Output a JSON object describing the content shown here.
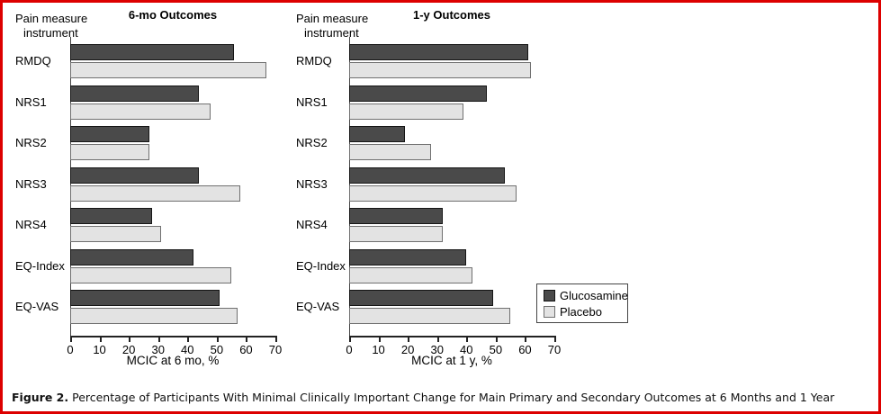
{
  "figure": {
    "border_color": "#dd0000",
    "caption_prefix": "Figure 2.",
    "caption_text": " Percentage of Participants With Minimal Clinically Important Change for Main Primary and Secondary Outcomes at 6 Months and 1 Year"
  },
  "y_axis_header": {
    "line1": "Pain measure",
    "line2": "instrument"
  },
  "legend": {
    "entries": [
      {
        "label": "Glucosamine",
        "color": "#4a4a4a",
        "border": "#151515"
      },
      {
        "label": "Placebo",
        "color": "#e3e3e3",
        "border": "#707070"
      }
    ]
  },
  "colors": {
    "glucosamine": "#4a4a4a",
    "placebo": "#e3e3e3",
    "frame_red": "#dd0000"
  },
  "chart_data": [
    {
      "type": "bar",
      "orientation": "horizontal",
      "title": "6-mo Outcomes",
      "xlabel": "MCIC at 6 mo, %",
      "ylabel": "Pain measure instrument",
      "categories": [
        "RMDQ",
        "NRS1",
        "NRS2",
        "NRS3",
        "NRS4",
        "EQ-Index",
        "EQ-VAS"
      ],
      "series": [
        {
          "name": "Glucosamine",
          "values": [
            56,
            44,
            27,
            44,
            28,
            42,
            51
          ]
        },
        {
          "name": "Placebo",
          "values": [
            67,
            48,
            27,
            58,
            31,
            55,
            57
          ]
        }
      ],
      "xlim": [
        0,
        70
      ],
      "xticks": [
        0,
        10,
        20,
        30,
        40,
        50,
        60,
        70
      ],
      "grid": false,
      "legend_position": "none"
    },
    {
      "type": "bar",
      "orientation": "horizontal",
      "title": "1-y Outcomes",
      "xlabel": "MCIC at 1 y, %",
      "ylabel": "Pain measure instrument",
      "categories": [
        "RMDQ",
        "NRS1",
        "NRS2",
        "NRS3",
        "NRS4",
        "EQ-Index",
        "EQ-VAS"
      ],
      "series": [
        {
          "name": "Glucosamine",
          "values": [
            61,
            47,
            19,
            53,
            32,
            40,
            49
          ]
        },
        {
          "name": "Placebo",
          "values": [
            62,
            39,
            28,
            57,
            32,
            42,
            55
          ]
        }
      ],
      "xlim": [
        0,
        70
      ],
      "xticks": [
        0,
        10,
        20,
        30,
        40,
        50,
        60,
        70
      ],
      "grid": false,
      "legend_position": "right-bottom"
    }
  ]
}
